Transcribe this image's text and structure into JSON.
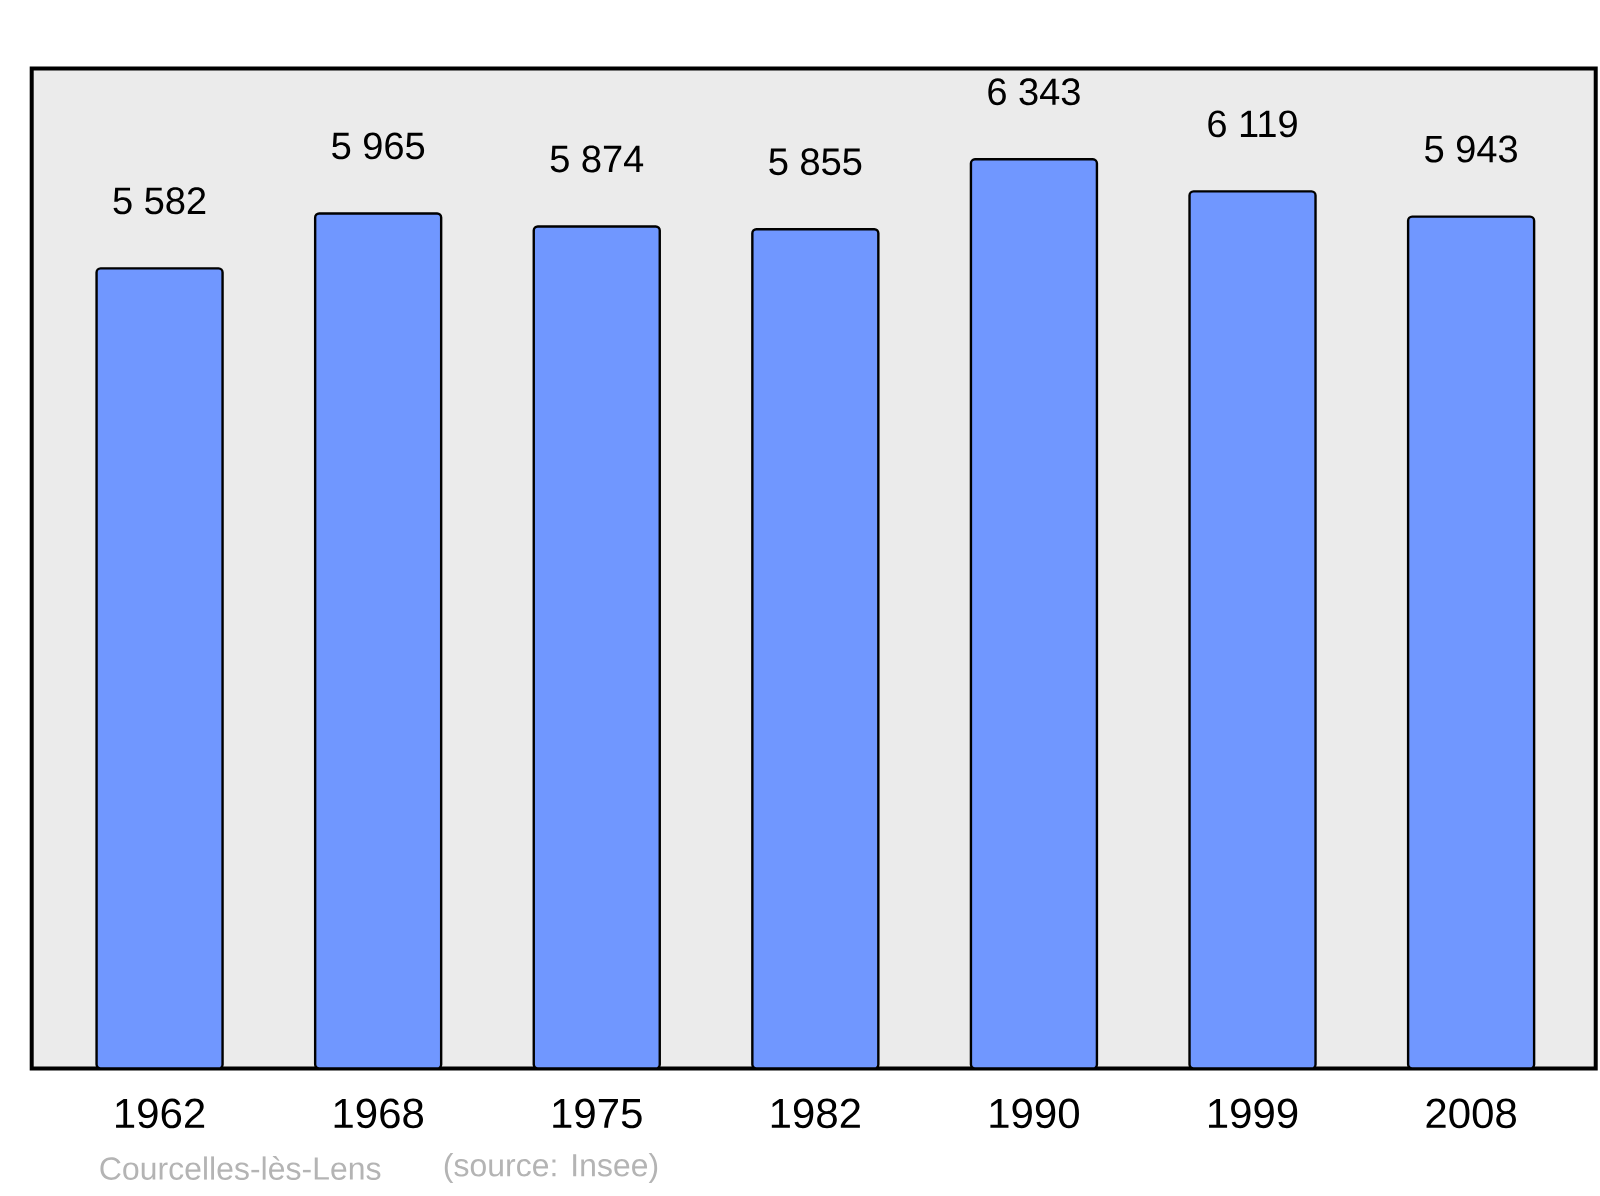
{
  "chart_data": {
    "type": "bar",
    "categories": [
      "1962",
      "1968",
      "1975",
      "1982",
      "1990",
      "1999",
      "2008"
    ],
    "values": [
      5582,
      5965,
      5874,
      5855,
      6343,
      6119,
      5943
    ],
    "value_labels": [
      "5 582",
      "5 965",
      "5 874",
      "5 855",
      "6 343",
      "6 119",
      "5 943"
    ],
    "color": "#7097ff",
    "annotations": [
      "Courcelles-lès-Lens",
      "(source: Insee)"
    ]
  }
}
